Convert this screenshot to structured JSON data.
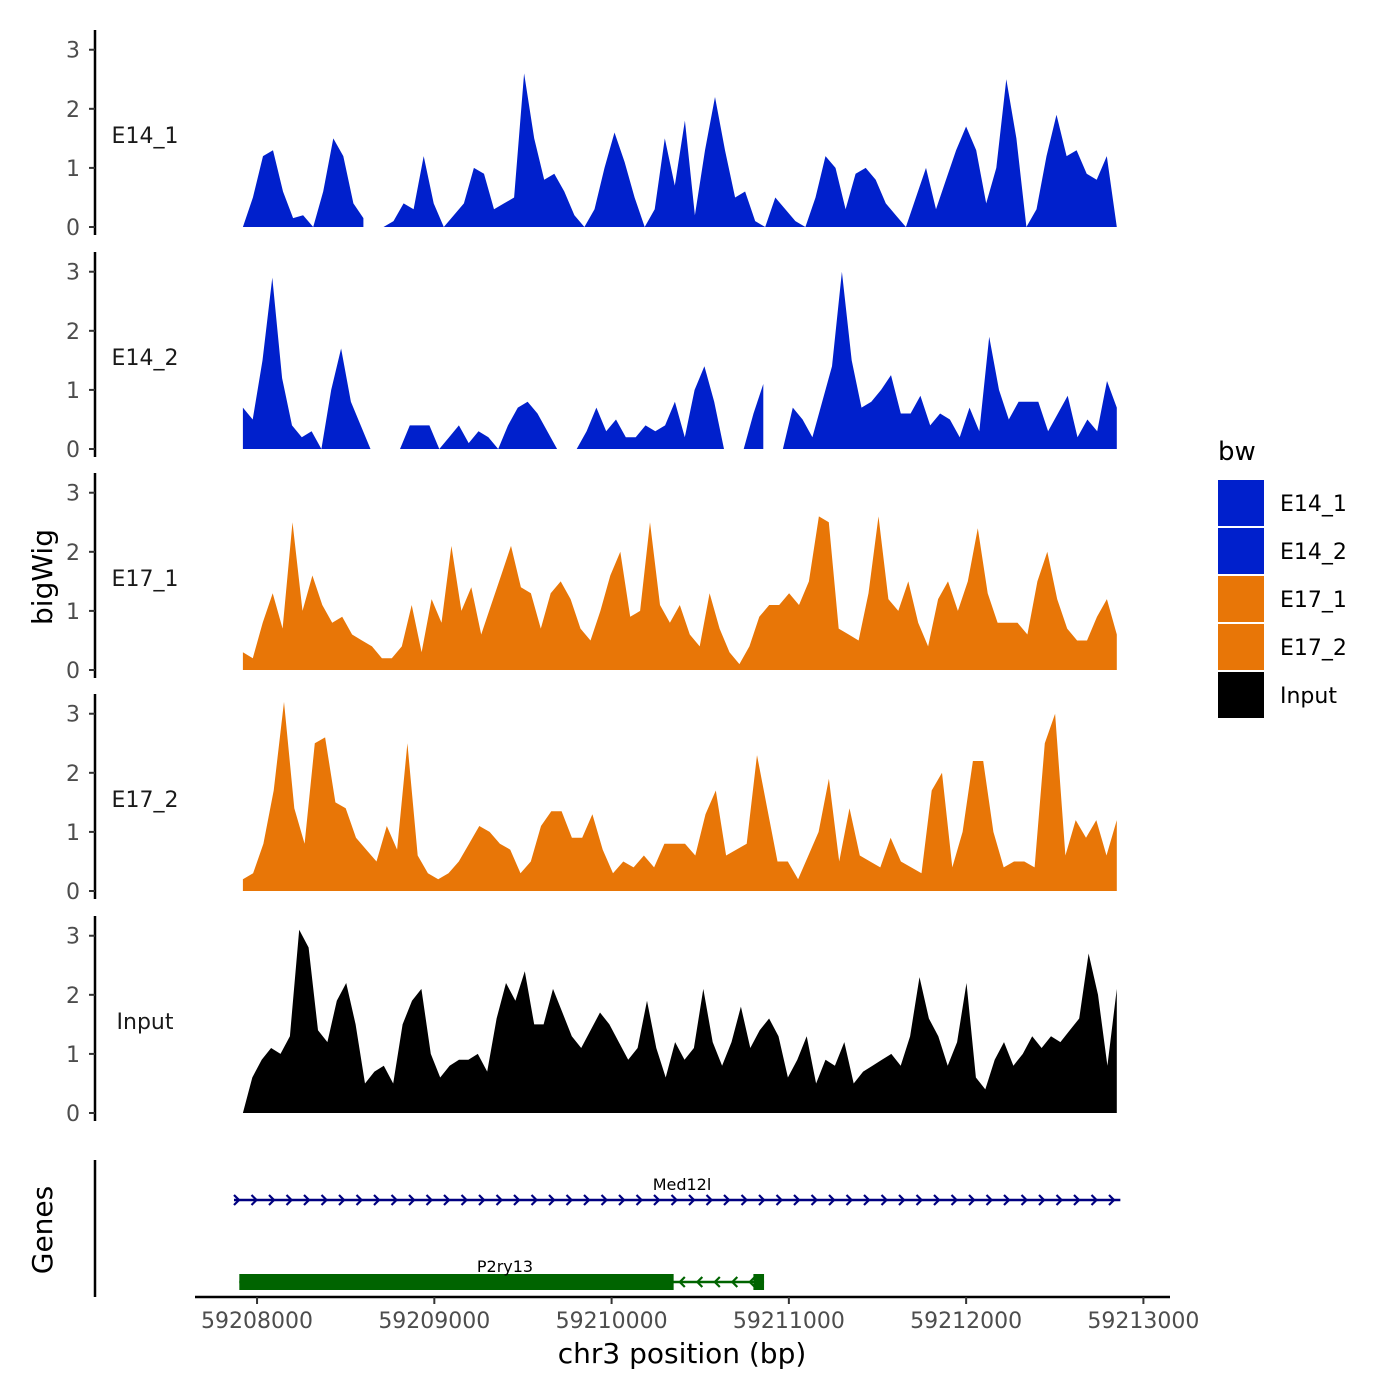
{
  "chart_data": {
    "type": "area",
    "title": "",
    "xlabel": "chr3 position (bp)",
    "ylabel": "bigWig",
    "genes_label": "Genes",
    "xlim": [
      59207650,
      59213150
    ],
    "x_ticks": [
      59208000,
      59209000,
      59210000,
      59211000,
      59212000,
      59213000
    ],
    "x_tick_labels": [
      "59208000",
      "59209000",
      "59210000",
      "59211000",
      "59212000",
      "59213000"
    ],
    "ylim": [
      0,
      3.3
    ],
    "y_ticks": [
      0,
      1,
      2,
      3
    ],
    "y_tick_labels": [
      "0",
      "1",
      "2",
      "3"
    ],
    "x_start": 59207920,
    "x_end": 59212850,
    "legend": {
      "title": "bw",
      "items": [
        {
          "label": "E14_1",
          "color": "#0020CC"
        },
        {
          "label": "E14_2",
          "color": "#0020CC"
        },
        {
          "label": "E17_1",
          "color": "#E87607"
        },
        {
          "label": "E17_2",
          "color": "#E87607"
        },
        {
          "label": "Input",
          "color": "#000000"
        }
      ]
    },
    "series": [
      {
        "name": "E14_1",
        "color": "#0020CC",
        "values": [
          0,
          0.5,
          1.2,
          1.3,
          0.6,
          0.15,
          0.2,
          0,
          0.6,
          1.5,
          1.2,
          0.4,
          0.15,
          null,
          0,
          0.1,
          0.4,
          0.3,
          1.2,
          0.4,
          0,
          0.2,
          0.4,
          1.0,
          0.9,
          0.3,
          0.4,
          0.5,
          2.6,
          1.5,
          0.8,
          0.9,
          0.6,
          0.2,
          0,
          0.3,
          1.0,
          1.6,
          1.1,
          0.5,
          0,
          0.3,
          1.5,
          0.7,
          1.8,
          0.2,
          1.3,
          2.2,
          1.3,
          0.5,
          0.6,
          0.1,
          0,
          0.5,
          0.3,
          0.1,
          0,
          0.5,
          1.2,
          1.0,
          0.3,
          0.9,
          1.0,
          0.8,
          0.4,
          0.2,
          0,
          0.5,
          1.0,
          0.3,
          0.8,
          1.3,
          1.7,
          1.3,
          0.4,
          1.0,
          2.5,
          1.5,
          0,
          0.3,
          1.2,
          1.9,
          1.2,
          1.3,
          0.9,
          0.8,
          1.2,
          0
        ]
      },
      {
        "name": "E14_2",
        "color": "#0020CC",
        "values": [
          0.7,
          0.5,
          1.5,
          2.9,
          1.2,
          0.4,
          0.2,
          0.3,
          0,
          1.0,
          1.7,
          0.8,
          0.4,
          0,
          null,
          null,
          0,
          0.4,
          0.4,
          0.4,
          0,
          0.2,
          0.4,
          0.1,
          0.3,
          0.2,
          0,
          0.4,
          0.7,
          0.8,
          0.6,
          0.3,
          0,
          null,
          0,
          0.3,
          0.7,
          0.3,
          0.5,
          0.2,
          0.2,
          0.4,
          0.3,
          0.4,
          0.8,
          0.2,
          1.0,
          1.4,
          0.8,
          0,
          null,
          0,
          0.6,
          1.1,
          null,
          0,
          0.7,
          0.5,
          0.2,
          0.8,
          1.4,
          3.0,
          1.5,
          0.7,
          0.8,
          1.0,
          1.25,
          0.6,
          0.6,
          0.9,
          0.4,
          0.6,
          0.5,
          0.2,
          0.7,
          0.3,
          1.9,
          1.0,
          0.5,
          0.8,
          0.8,
          0.8,
          0.3,
          0.6,
          0.9,
          0.2,
          0.5,
          0.3,
          1.15,
          0.7
        ]
      },
      {
        "name": "E17_1",
        "color": "#E87607",
        "values": [
          0.3,
          0.2,
          0.8,
          1.3,
          0.7,
          2.5,
          1.0,
          1.6,
          1.1,
          0.8,
          0.9,
          0.6,
          0.5,
          0.4,
          0.2,
          0.2,
          0.4,
          1.1,
          0.3,
          1.2,
          0.8,
          2.1,
          1.0,
          1.4,
          0.6,
          1.1,
          1.6,
          2.1,
          1.4,
          1.3,
          0.7,
          1.3,
          1.5,
          1.2,
          0.7,
          0.5,
          1.0,
          1.6,
          2.0,
          0.9,
          1.0,
          2.5,
          1.1,
          0.8,
          1.1,
          0.6,
          0.4,
          1.3,
          0.7,
          0.3,
          0.1,
          0.4,
          0.9,
          1.1,
          1.1,
          1.3,
          1.1,
          1.5,
          2.6,
          2.5,
          0.7,
          0.6,
          0.5,
          1.3,
          2.6,
          1.2,
          1.0,
          1.5,
          0.8,
          0.4,
          1.2,
          1.5,
          1.0,
          1.5,
          2.4,
          1.3,
          0.8,
          0.8,
          0.8,
          0.6,
          1.5,
          2.0,
          1.2,
          0.7,
          0.5,
          0.5,
          0.9,
          1.2,
          0.6
        ]
      },
      {
        "name": "E17_2",
        "color": "#E87607",
        "values": [
          0.2,
          0.3,
          0.8,
          1.7,
          3.2,
          1.4,
          0.8,
          2.5,
          2.6,
          1.5,
          1.4,
          0.9,
          0.7,
          0.5,
          1.1,
          0.7,
          2.5,
          0.6,
          0.3,
          0.2,
          0.3,
          0.5,
          0.8,
          1.1,
          1.0,
          0.8,
          0.7,
          0.3,
          0.5,
          1.1,
          1.35,
          1.35,
          0.9,
          0.9,
          1.3,
          0.7,
          0.3,
          0.5,
          0.4,
          0.6,
          0.4,
          0.8,
          0.8,
          0.8,
          0.6,
          1.3,
          1.7,
          0.6,
          0.7,
          0.8,
          2.3,
          1.4,
          0.5,
          0.5,
          0.2,
          0.6,
          1.0,
          1.9,
          0.5,
          1.4,
          0.6,
          0.5,
          0.4,
          0.9,
          0.5,
          0.4,
          0.3,
          1.7,
          2.0,
          0.4,
          1.0,
          2.2,
          2.2,
          1.0,
          0.4,
          0.5,
          0.5,
          0.4,
          2.5,
          3.0,
          0.6,
          1.2,
          0.9,
          1.2,
          0.6,
          1.2
        ]
      },
      {
        "name": "Input",
        "color": "#000000",
        "values": [
          0,
          0.6,
          0.9,
          1.1,
          1.0,
          1.3,
          3.1,
          2.8,
          1.4,
          1.2,
          1.9,
          2.2,
          1.5,
          0.5,
          0.7,
          0.8,
          0.5,
          1.5,
          1.9,
          2.1,
          1.0,
          0.6,
          0.8,
          0.9,
          0.9,
          1.0,
          0.7,
          1.6,
          2.2,
          1.9,
          2.4,
          1.5,
          1.5,
          2.1,
          1.7,
          1.3,
          1.1,
          1.4,
          1.7,
          1.5,
          1.2,
          0.9,
          1.1,
          1.9,
          1.1,
          0.6,
          1.2,
          0.9,
          1.1,
          2.1,
          1.2,
          0.8,
          1.2,
          1.8,
          1.1,
          1.4,
          1.6,
          1.3,
          0.6,
          0.9,
          1.3,
          0.5,
          0.9,
          0.8,
          1.2,
          0.5,
          0.7,
          0.8,
          0.9,
          1.0,
          0.8,
          1.3,
          2.3,
          1.6,
          1.3,
          0.8,
          1.2,
          2.2,
          0.6,
          0.4,
          0.9,
          1.2,
          0.8,
          1.0,
          1.3,
          1.1,
          1.3,
          1.2,
          1.4,
          1.6,
          2.7,
          2.0,
          0.8,
          2.1
        ]
      }
    ],
    "genes": [
      {
        "name": "Med12l",
        "start": 59207870,
        "end": 59212870,
        "strand": "+",
        "color": "#000080",
        "blocks": []
      },
      {
        "name": "P2ry13",
        "start": 59207900,
        "end": 59210860,
        "strand": "-",
        "color": "#006400",
        "blocks": [
          [
            59207900,
            59210350
          ],
          [
            59210800,
            59210860
          ]
        ]
      }
    ]
  }
}
